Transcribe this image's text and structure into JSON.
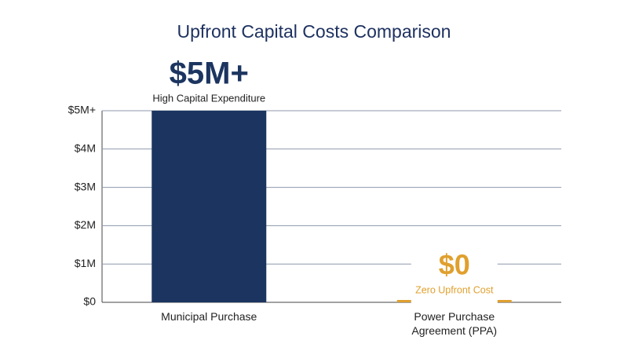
{
  "chart_data": {
    "type": "bar",
    "title": "Upfront Capital Costs Comparison",
    "categories": [
      "Municipal Purchase",
      "Power Purchase Agreement (PPA)"
    ],
    "values": [
      5000000,
      0
    ],
    "value_labels": [
      "$5M+",
      "$0"
    ],
    "annotations": [
      "High Capital Expenditure",
      "Zero Upfront Cost"
    ],
    "colors": [
      "#1c3560",
      "#e0a02e"
    ],
    "ylim": [
      0,
      5000000
    ],
    "yticks": [
      {
        "value": 0,
        "label": "$0"
      },
      {
        "value": 1000000,
        "label": "$1M"
      },
      {
        "value": 2000000,
        "label": "$2M"
      },
      {
        "value": 3000000,
        "label": "$3M"
      },
      {
        "value": 4000000,
        "label": "$4M"
      },
      {
        "value": 5000000,
        "label": "$5M+"
      }
    ],
    "grid": true
  }
}
